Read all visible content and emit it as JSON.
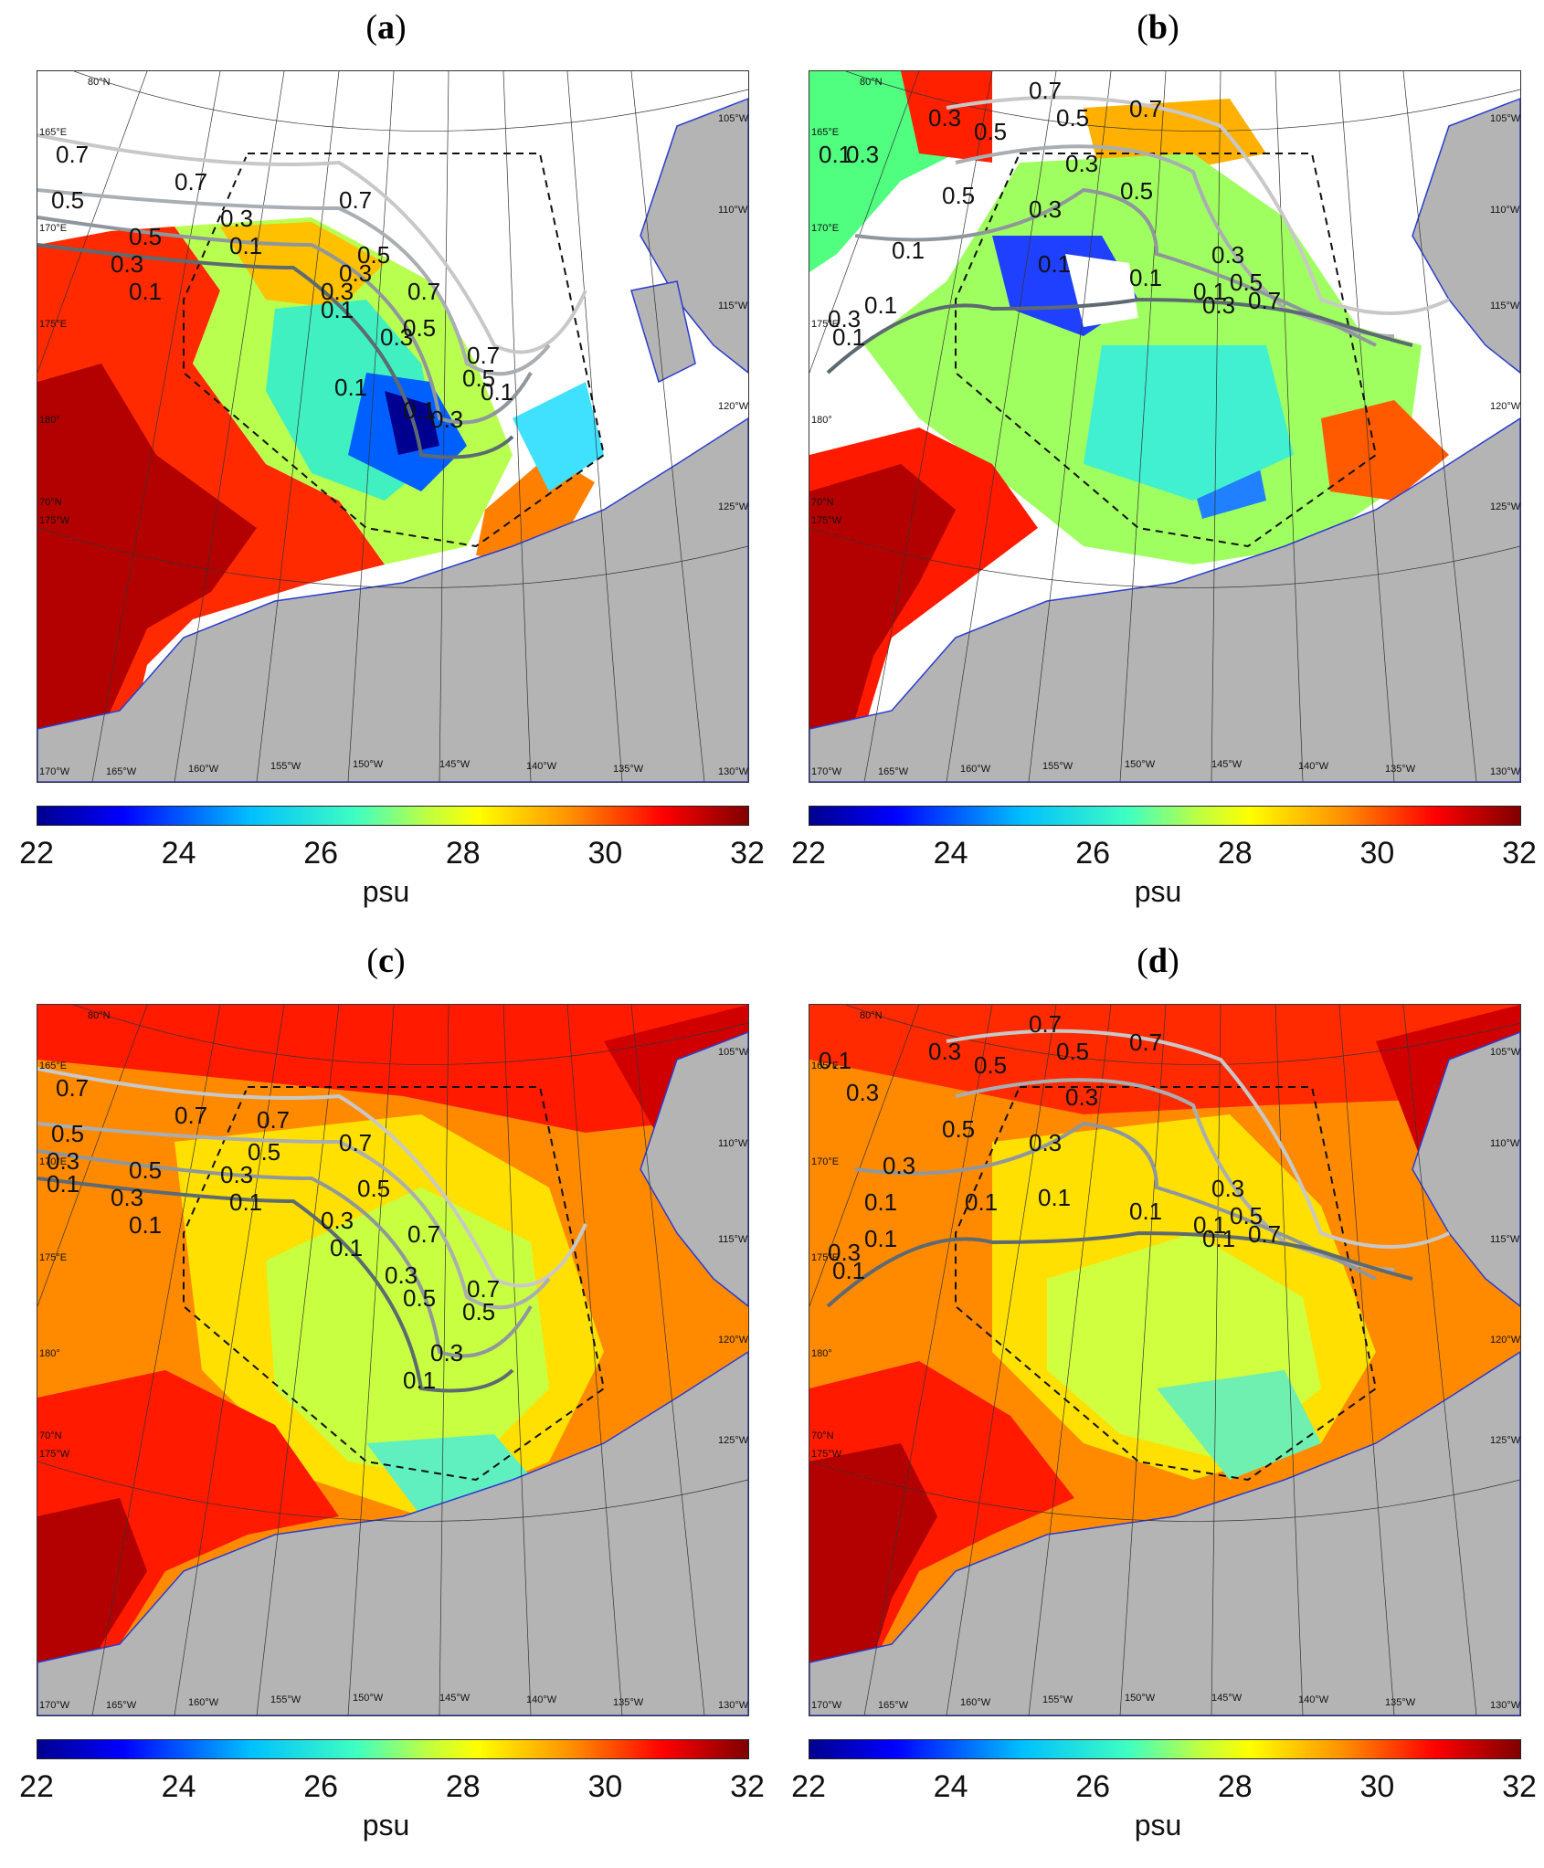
{
  "panels": [
    {
      "id": "a",
      "label": "a",
      "contour_labels": [
        "0.7",
        "0.5",
        "0.7",
        "0.5",
        "0.3",
        "0.1",
        "0.3",
        "0.1",
        "0.3",
        "0.7",
        "0.5",
        "0.3",
        "0.1",
        "0.1",
        "0.1",
        "0.3",
        "0.5",
        "0.7",
        "0.7",
        "0.5",
        "0.3",
        "0.1"
      ]
    },
    {
      "id": "b",
      "label": "b",
      "contour_labels": [
        "0.1",
        "0.3",
        "0.5",
        "0.7",
        "0.7",
        "0.5",
        "0.3",
        "0.3",
        "0.5",
        "0.1",
        "0.3",
        "0.1",
        "0.1",
        "0.3",
        "0.7",
        "0.5",
        "0.3",
        "0.5",
        "0.1",
        "0.1",
        "0.3",
        "0.1"
      ]
    },
    {
      "id": "c",
      "label": "c",
      "contour_labels": [
        "0.7",
        "0.5",
        "0.3",
        "0.1",
        "0.7",
        "0.7",
        "0.5",
        "0.3",
        "0.1",
        "0.5",
        "0.3",
        "0.1",
        "0.7",
        "0.5",
        "0.3",
        "0.1",
        "0.3",
        "0.5",
        "0.7",
        "0.7",
        "0.5",
        "0.3",
        "0.1"
      ]
    },
    {
      "id": "d",
      "label": "d",
      "contour_labels": [
        "0.1",
        "0.3",
        "0.3",
        "0.5",
        "0.7",
        "0.7",
        "0.5",
        "0.3",
        "0.5",
        "0.3",
        "0.3",
        "0.1",
        "0.1",
        "0.1",
        "0.1",
        "0.7",
        "0.5",
        "0.3",
        "0.1",
        "0.1",
        "0.1",
        "0.3",
        "0.1"
      ]
    }
  ],
  "map_labels": {
    "top_lat": "80°N",
    "left_lon": [
      "165°E",
      "170°E",
      "175°E",
      "180°",
      "175°W",
      "170°W"
    ],
    "right_lon": [
      "105°W",
      "110°W",
      "115°W",
      "120°W",
      "125°W",
      "130°W"
    ],
    "bottom_lon": [
      "165°W",
      "160°W",
      "155°W",
      "150°W",
      "145°W",
      "140°W",
      "135°W"
    ],
    "lat70": "70°N"
  },
  "colorbar": {
    "ticks": [
      "22",
      "24",
      "26",
      "28",
      "30",
      "32"
    ],
    "min": 22,
    "max": 32,
    "unit": "psu"
  },
  "colors": {
    "land": "#b4b4b4",
    "coast": "#2b3ccf",
    "contour_light": "#c8c8c8",
    "contour_mid": "#8f979d",
    "contour_dark": "#5d6a72"
  }
}
